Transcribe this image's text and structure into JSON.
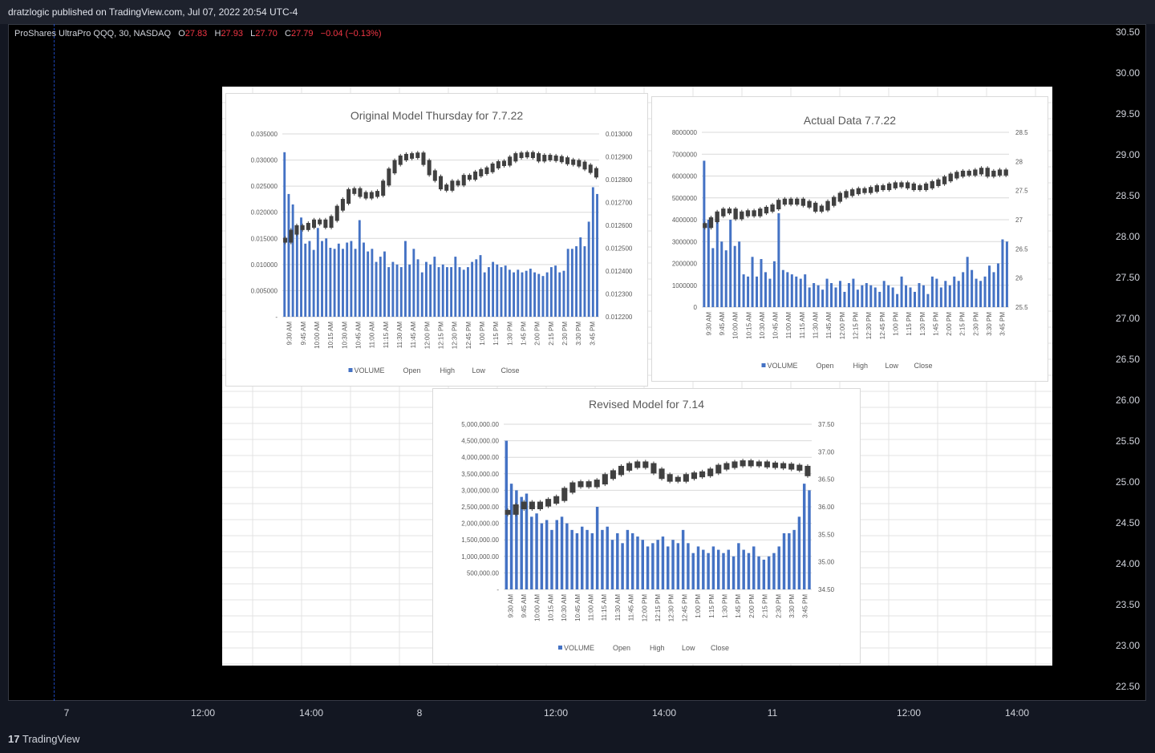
{
  "header": {
    "publisher_line": "dratzlogic published on TradingView.com, Jul 07, 2022 20:54 UTC-4",
    "symbol": "ProShares UltraPro QQQ, 30, NASDAQ",
    "o_label": "O",
    "o_value": "27.83",
    "h_label": "H",
    "h_value": "27.93",
    "l_label": "L",
    "l_value": "27.70",
    "c_label": "C",
    "c_value": "27.79",
    "change": "−0.04 (−0.13%)"
  },
  "price_axis": [
    "30.50",
    "30.00",
    "29.50",
    "29.00",
    "28.50",
    "28.00",
    "27.50",
    "27.00",
    "26.50",
    "26.00",
    "25.50",
    "25.00",
    "24.50",
    "24.00",
    "23.50",
    "23.00",
    "22.50"
  ],
  "time_axis": [
    "7",
    "12:00",
    "14:00",
    "8",
    "12:00",
    "14:00",
    "11",
    "12:00",
    "14:00"
  ],
  "footer": {
    "brand": "TradingView"
  },
  "colors": {
    "volume": "#4472c4",
    "candle": "#404040",
    "background": "#000000",
    "change": "#f23645"
  },
  "chart_data": [
    {
      "type": "bar",
      "title": "Original Model Thursday for 7.7.22",
      "categories": [
        "9:30 AM",
        "9:45 AM",
        "10:00 AM",
        "10:15 AM",
        "10:30 AM",
        "10:45 AM",
        "11:00 AM",
        "11:15 AM",
        "11:30 AM",
        "11:45 AM",
        "12:00 PM",
        "12:15 PM",
        "12:30 PM",
        "12:45 PM",
        "1:00 PM",
        "1:15 PM",
        "1:30 PM",
        "1:45 PM",
        "2:00 PM",
        "2:15 PM",
        "2:30 PM",
        "3:30 PM",
        "3:45 PM"
      ],
      "y_left_ticks": [
        "0.035000",
        "0.030000",
        "0.025000",
        "0.020000",
        "0.015000",
        "0.010000",
        "0.005000",
        "-"
      ],
      "y_right_ticks": [
        "0.013000",
        "0.012900",
        "0.012800",
        "0.012700",
        "0.012600",
        "0.012500",
        "0.012400",
        "0.012300",
        "0.012200"
      ],
      "ylim_left": [
        0,
        0.035
      ],
      "ylim_right": [
        0.0122,
        0.013
      ],
      "legend": [
        "VOLUME",
        "Open",
        "High",
        "Low",
        "Close"
      ],
      "volume": [
        0.0315,
        0.0235,
        0.0215,
        0.016,
        0.019,
        0.014,
        0.0145,
        0.0128,
        0.017,
        0.0145,
        0.015,
        0.0132,
        0.013,
        0.014,
        0.013,
        0.0142,
        0.0145,
        0.013,
        0.0185,
        0.0142,
        0.0125,
        0.013,
        0.0105,
        0.0115,
        0.0125,
        0.0095,
        0.0105,
        0.01,
        0.0095,
        0.0145,
        0.01,
        0.013,
        0.011,
        0.0085,
        0.0105,
        0.01,
        0.0115,
        0.0095,
        0.01,
        0.0095,
        0.0095,
        0.0115,
        0.0095,
        0.009,
        0.0095,
        0.0105,
        0.011,
        0.0118,
        0.0085,
        0.0095,
        0.0105,
        0.01,
        0.0095,
        0.0098,
        0.009,
        0.0085,
        0.009,
        0.0085,
        0.0088,
        0.0092,
        0.0085,
        0.0082,
        0.0078,
        0.0085,
        0.0095,
        0.0098,
        0.0085,
        0.0088,
        0.013,
        0.013,
        0.0135,
        0.0152,
        0.0135,
        0.0182,
        0.0248,
        0.0235
      ],
      "close_path": [
        0.012535,
        0.01257,
        0.01259,
        0.01259,
        0.0126,
        0.012615,
        0.012615,
        0.0126,
        0.01263,
        0.012675,
        0.012705,
        0.012748,
        0.012752,
        0.012735,
        0.012728,
        0.012735,
        0.01274,
        0.012785,
        0.012838,
        0.012875,
        0.012895,
        0.012902,
        0.012905,
        0.012908,
        0.012875,
        0.01283,
        0.012805,
        0.012768,
        0.012762,
        0.012785,
        0.012785,
        0.01281,
        0.01281,
        0.012825,
        0.012835,
        0.012843,
        0.01286,
        0.01287,
        0.012872,
        0.01289,
        0.012905,
        0.012908,
        0.01291,
        0.012905,
        0.01289,
        0.012898,
        0.012895,
        0.012892,
        0.012887,
        0.012878,
        0.012875,
        0.012868,
        0.012855,
        0.01284,
        0.01282
      ]
    },
    {
      "type": "bar",
      "title": "Actual Data 7.7.22",
      "categories": [
        "9:30 AM",
        "9:45 AM",
        "10:00 AM",
        "10:15 AM",
        "10:30 AM",
        "10:45 AM",
        "11:00 AM",
        "11:15 AM",
        "11:30 AM",
        "11:45 AM",
        "12:00 PM",
        "12:15 PM",
        "12:30 PM",
        "12:45 PM",
        "1:00 PM",
        "1:15 PM",
        "1:30 PM",
        "1:45 PM",
        "2:00 PM",
        "2:15 PM",
        "2:30 PM",
        "3:30 PM",
        "3:45 PM"
      ],
      "y_left_ticks": [
        "8000000",
        "7000000",
        "6000000",
        "5000000",
        "4000000",
        "3000000",
        "2000000",
        "1000000",
        "0"
      ],
      "y_right_ticks": [
        "28.5",
        "28",
        "27.5",
        "27",
        "26.5",
        "26",
        "25.5"
      ],
      "ylim_left": [
        0,
        8000000
      ],
      "ylim_right": [
        25.5,
        28.5
      ],
      "legend": [
        "VOLUME",
        "Open",
        "High",
        "Low",
        "Close"
      ],
      "volume": [
        6700000,
        4000000,
        2700000,
        4200000,
        3000000,
        2600000,
        4000000,
        2800000,
        3000000,
        1500000,
        1400000,
        2300000,
        1400000,
        2200000,
        1600000,
        1300000,
        2100000,
        4300000,
        1700000,
        1600000,
        1500000,
        1400000,
        1300000,
        1500000,
        900000,
        1100000,
        1000000,
        800000,
        1300000,
        1100000,
        900000,
        1200000,
        700000,
        1100000,
        1300000,
        800000,
        1000000,
        1100000,
        1000000,
        900000,
        700000,
        1200000,
        1000000,
        900000,
        600000,
        1400000,
        1000000,
        900000,
        700000,
        1100000,
        1000000,
        600000,
        1400000,
        1300000,
        900000,
        1200000,
        1000000,
        1400000,
        1200000,
        1600000,
        2300000,
        1700000,
        1300000,
        1200000,
        1400000,
        1900000,
        1600000,
        2000000,
        3100000,
        3000000
      ],
      "close_path": [
        26.9,
        27.0,
        27.1,
        27.15,
        27.15,
        27.05,
        27.1,
        27.12,
        27.1,
        27.15,
        27.18,
        27.22,
        27.3,
        27.32,
        27.3,
        27.32,
        27.28,
        27.25,
        27.18,
        27.2,
        27.28,
        27.35,
        27.42,
        27.45,
        27.48,
        27.5,
        27.5,
        27.52,
        27.55,
        27.55,
        27.58,
        27.6,
        27.6,
        27.58,
        27.55,
        27.55,
        27.58,
        27.62,
        27.65,
        27.7,
        27.75,
        27.78,
        27.8,
        27.8,
        27.82,
        27.85,
        27.78,
        27.8,
        27.82,
        27.8
      ]
    },
    {
      "type": "bar",
      "title": "Revised Model for 7.14",
      "categories": [
        "9:30 AM",
        "9:45 AM",
        "10:00 AM",
        "10:15 AM",
        "10:30 AM",
        "10:45 AM",
        "11:00 AM",
        "11:15 AM",
        "11:30 AM",
        "11:45 AM",
        "12:00 PM",
        "12:15 PM",
        "12:30 PM",
        "12:45 PM",
        "1:00 PM",
        "1:15 PM",
        "1:30 PM",
        "1:45 PM",
        "2:00 PM",
        "2:15 PM",
        "2:30 PM",
        "3:30 PM",
        "3:45 PM"
      ],
      "y_left_ticks": [
        "5,000,000.00",
        "4,500,000.00",
        "4,000,000.00",
        "3,500,000.00",
        "3,000,000.00",
        "2,500,000.00",
        "2,000,000.00",
        "1,500,000.00",
        "1,000,000.00",
        "500,000.00",
        "-"
      ],
      "y_right_ticks": [
        "37.50",
        "37.00",
        "36.50",
        "36.00",
        "35.50",
        "35.00",
        "34.50"
      ],
      "ylim_left": [
        0,
        5000000
      ],
      "ylim_right": [
        34.5,
        37.5
      ],
      "legend": [
        "VOLUME",
        "Open",
        "High",
        "Low",
        "Close"
      ],
      "volume": [
        4500000,
        3200000,
        3000000,
        2800000,
        2900000,
        2200000,
        2300000,
        2000000,
        2100000,
        1800000,
        2100000,
        2200000,
        2000000,
        1800000,
        1700000,
        1900000,
        1800000,
        1700000,
        2500000,
        1800000,
        1900000,
        1500000,
        1700000,
        1400000,
        1800000,
        1700000,
        1600000,
        1500000,
        1300000,
        1400000,
        1500000,
        1600000,
        1300000,
        1500000,
        1400000,
        1800000,
        1400000,
        1100000,
        1300000,
        1200000,
        1100000,
        1300000,
        1200000,
        1100000,
        1200000,
        1000000,
        1400000,
        1200000,
        1100000,
        1300000,
        1000000,
        900000,
        1000000,
        1100000,
        1300000,
        1700000,
        1700000,
        1800000,
        2200000,
        3200000,
        3000000
      ],
      "close_path": [
        35.9,
        36.0,
        36.05,
        36.0,
        36.05,
        36.1,
        36.15,
        36.3,
        36.4,
        36.42,
        36.4,
        36.45,
        36.55,
        36.62,
        36.7,
        36.75,
        36.78,
        36.75,
        36.65,
        36.55,
        36.5,
        36.5,
        36.55,
        36.58,
        36.6,
        36.65,
        36.72,
        36.75,
        36.78,
        36.8,
        36.78,
        36.78,
        36.76,
        36.75,
        36.74,
        36.72,
        36.7,
        36.6
      ]
    }
  ]
}
